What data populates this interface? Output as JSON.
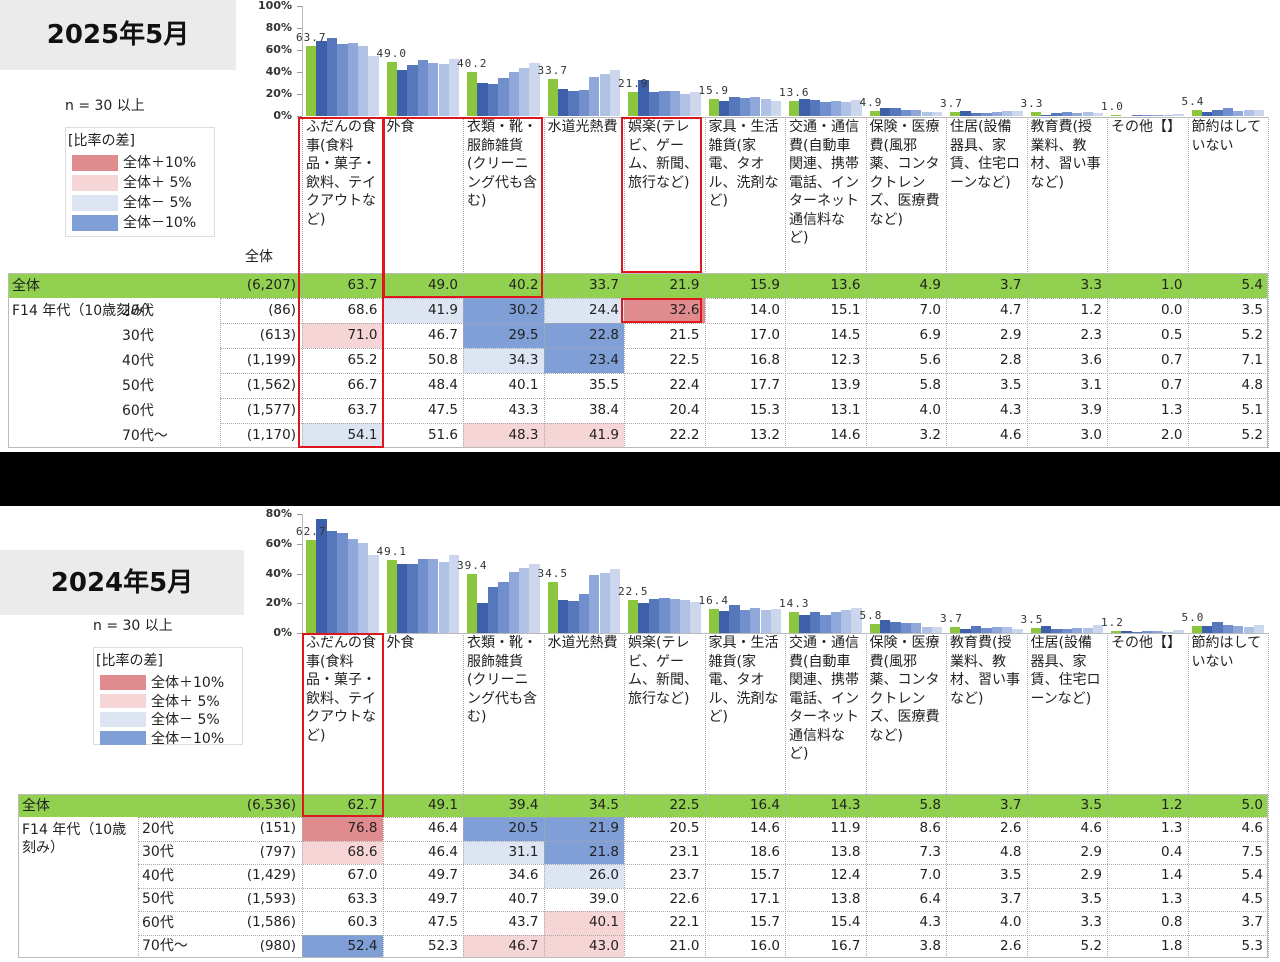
{
  "chart_data": [
    {
      "type": "bar",
      "title": "2025年5月",
      "note": "n = 30 以上",
      "legend_title": "[比率の差]",
      "legend": [
        {
          "label": "全体＋10%",
          "color": "#e08b8e",
          "threshold": 10
        },
        {
          "label": "全体＋ 5%",
          "color": "#f6d5d7",
          "threshold": 5
        },
        {
          "label": "全体－ 5%",
          "color": "#dde5f3",
          "threshold": -5
        },
        {
          "label": "全体－10%",
          "color": "#7f9fd6",
          "threshold": -10
        }
      ],
      "n_header": "全体",
      "group_label": "F14 年代（10歳刻み）",
      "categories": [
        "ふだんの食事(食料品・菓子・飲料、テイクアウトなど)",
        "外食",
        "衣類・靴・服飾雑貨(クリーニング代も含む)",
        "水道光熱費",
        "娯楽(テレビ、ゲーム、新聞、旅行など)",
        "家具・生活雑貨(家電、タオル、洗剤など)",
        "交通・通信費(自動車関連、携帯電話、インターネット通信料など)",
        "保険・医療費(風邪薬、コンタクトレンズ、医療費など)",
        "住居(設備器具、家賃、住宅ローンなど)",
        "教育費(授業料、教材、習い事など)",
        "その他【】",
        "節約はしていない"
      ],
      "series": [
        {
          "name": "全体",
          "n": "(6,207)",
          "color": "#8cc63e",
          "values": [
            63.7,
            49.0,
            40.2,
            33.7,
            21.9,
            15.9,
            13.6,
            4.9,
            3.7,
            3.3,
            1.0,
            5.4
          ],
          "value_labels": [
            "63.7",
            "49.0",
            "40.2",
            "33.7",
            "21.9",
            "15.9",
            "13.6",
            "4.9",
            "3.7",
            "3.3",
            "1.0",
            "5.4"
          ]
        },
        {
          "name": "20代",
          "n": "(86)",
          "color": "#3e5fa9",
          "values": [
            68.6,
            41.9,
            30.2,
            24.4,
            32.6,
            14.0,
            15.1,
            7.0,
            4.7,
            1.2,
            0.0,
            3.5
          ],
          "value_labels": [
            "68.6",
            "41.9",
            "30.2",
            "24.4",
            "32.6",
            "14.0",
            "15.1",
            "7.0",
            "4.7",
            "1.2",
            "0.0",
            "3.5"
          ]
        },
        {
          "name": "30代",
          "n": "(613)",
          "color": "#5777bd",
          "values": [
            71.0,
            46.7,
            29.5,
            22.8,
            21.5,
            17.0,
            14.5,
            6.9,
            2.9,
            2.3,
            0.5,
            5.2
          ],
          "value_labels": [
            "71.0",
            "46.7",
            "29.5",
            "22.8",
            "21.5",
            "17.0",
            "14.5",
            "6.9",
            "2.9",
            "2.3",
            "0.5",
            "5.2"
          ]
        },
        {
          "name": "40代",
          "n": "(1,199)",
          "color": "#708fcc",
          "values": [
            65.2,
            50.8,
            34.3,
            23.4,
            22.5,
            16.8,
            12.3,
            5.6,
            2.8,
            3.6,
            0.7,
            7.1
          ],
          "value_labels": [
            "65.2",
            "50.8",
            "34.3",
            "23.4",
            "22.5",
            "16.8",
            "12.3",
            "5.6",
            "2.8",
            "3.6",
            "0.7",
            "7.1"
          ]
        },
        {
          "name": "50代",
          "n": "(1,562)",
          "color": "#8fa8d9",
          "values": [
            66.7,
            48.4,
            40.1,
            35.5,
            22.4,
            17.7,
            13.9,
            5.8,
            3.5,
            3.1,
            0.7,
            4.8
          ],
          "value_labels": [
            "66.7",
            "48.4",
            "40.1",
            "35.5",
            "22.4",
            "17.7",
            "13.9",
            "5.8",
            "3.5",
            "3.1",
            "0.7",
            "4.8"
          ]
        },
        {
          "name": "60代",
          "n": "(1,577)",
          "color": "#afc1e4",
          "values": [
            63.7,
            47.5,
            43.3,
            38.4,
            20.4,
            15.3,
            13.1,
            4.0,
            4.3,
            3.9,
            1.3,
            5.1
          ],
          "value_labels": [
            "63.7",
            "47.5",
            "43.3",
            "38.4",
            "20.4",
            "15.3",
            "13.1",
            "4.0",
            "4.3",
            "3.9",
            "1.3",
            "5.1"
          ]
        },
        {
          "name": "70代～",
          "n": "(1,170)",
          "color": "#ccd7ee",
          "values": [
            54.1,
            51.6,
            48.3,
            41.9,
            22.2,
            13.2,
            14.6,
            3.2,
            4.6,
            3.0,
            2.0,
            5.2
          ],
          "value_labels": [
            "54.1",
            "51.6",
            "48.3",
            "41.9",
            "22.2",
            "13.2",
            "14.6",
            "3.2",
            "4.6",
            "3.0",
            "2.0",
            "5.2"
          ]
        }
      ],
      "ylim": [
        0,
        100
      ],
      "yticks": [
        {
          "value": 0,
          "label": "0%"
        },
        {
          "value": 20,
          "label": "20%"
        },
        {
          "value": 40,
          "label": "40%"
        },
        {
          "value": 60,
          "label": "60%"
        },
        {
          "value": 80,
          "label": "80%"
        },
        {
          "value": 100,
          "label": "100%"
        }
      ]
    },
    {
      "type": "bar",
      "title": "2024年5月",
      "note": "n = 30 以上",
      "legend_title": "[比率の差]",
      "legend": [
        {
          "label": "全体＋10%",
          "color": "#e08b8e",
          "threshold": 10
        },
        {
          "label": "全体＋ 5%",
          "color": "#f6d5d7",
          "threshold": 5
        },
        {
          "label": "全体－ 5%",
          "color": "#dde5f3",
          "threshold": -5
        },
        {
          "label": "全体－10%",
          "color": "#7f9fd6",
          "threshold": -10
        }
      ],
      "group_label": "F14 年代（10歳刻み）",
      "categories": [
        "ふだんの食事(食料品・菓子・飲料、テイクアウトなど)",
        "外食",
        "衣類・靴・服飾雑貨(クリーニング代も含む)",
        "水道光熱費",
        "娯楽(テレビ、ゲーム、新聞、旅行など)",
        "家具・生活雑貨(家電、タオル、洗剤など)",
        "交通・通信費(自動車関連、携帯電話、インターネット通信料など)",
        "保険・医療費(風邪薬、コンタクトレンズ、医療費など)",
        "教育費(授業料、教材、習い事など)",
        "住居(設備器具、家賃、住宅ローンなど)",
        "その他【】",
        "節約はしていない"
      ],
      "series": [
        {
          "name": "全体",
          "n": "(6,536)",
          "color": "#8cc63e",
          "values": [
            62.7,
            49.1,
            39.4,
            34.5,
            22.5,
            16.4,
            14.3,
            5.8,
            3.7,
            3.5,
            1.2,
            5.0
          ],
          "value_labels": [
            "62.7",
            "49.1",
            "39.4",
            "34.5",
            "22.5",
            "16.4",
            "14.3",
            "5.8",
            "3.7",
            "3.5",
            "1.2",
            "5.0"
          ]
        },
        {
          "name": "20代",
          "n": "(151)",
          "color": "#3e5fa9",
          "values": [
            76.8,
            46.4,
            20.5,
            21.9,
            20.5,
            14.6,
            11.9,
            8.6,
            2.6,
            4.6,
            1.3,
            4.6
          ],
          "value_labels": [
            "76.8",
            "46.4",
            "20.5",
            "21.9",
            "20.5",
            "14.6",
            "11.9",
            "8.6",
            "2.6",
            "4.6",
            "1.3",
            "4.6"
          ]
        },
        {
          "name": "30代",
          "n": "(797)",
          "color": "#5777bd",
          "values": [
            68.6,
            46.4,
            31.1,
            21.8,
            23.1,
            18.6,
            13.8,
            7.3,
            4.8,
            2.9,
            0.4,
            7.5
          ],
          "value_labels": [
            "68.6",
            "46.4",
            "31.1",
            "21.8",
            "23.1",
            "18.6",
            "13.8",
            "7.3",
            "4.8",
            "2.9",
            "0.4",
            "7.5"
          ]
        },
        {
          "name": "40代",
          "n": "(1,429)",
          "color": "#708fcc",
          "values": [
            67.0,
            49.7,
            34.6,
            26.0,
            23.7,
            15.7,
            12.4,
            7.0,
            3.5,
            2.9,
            1.4,
            5.4
          ],
          "value_labels": [
            "67.0",
            "49.7",
            "34.6",
            "26.0",
            "23.7",
            "15.7",
            "12.4",
            "7.0",
            "3.5",
            "2.9",
            "1.4",
            "5.4"
          ]
        },
        {
          "name": "50代",
          "n": "(1,593)",
          "color": "#8fa8d9",
          "values": [
            63.3,
            49.7,
            40.7,
            39.0,
            22.6,
            17.1,
            13.8,
            6.4,
            3.7,
            3.5,
            1.3,
            4.5
          ],
          "value_labels": [
            "63.3",
            "49.7",
            "40.7",
            "39.0",
            "22.6",
            "17.1",
            "13.8",
            "6.4",
            "3.7",
            "3.5",
            "1.3",
            "4.5"
          ]
        },
        {
          "name": "60代",
          "n": "(1,586)",
          "color": "#afc1e4",
          "values": [
            60.3,
            47.5,
            43.7,
            40.1,
            22.1,
            15.7,
            15.4,
            4.3,
            4.0,
            3.3,
            0.8,
            3.7
          ],
          "value_labels": [
            "60.3",
            "47.5",
            "43.7",
            "40.1",
            "22.1",
            "15.7",
            "15.4",
            "4.3",
            "4.0",
            "3.3",
            "0.8",
            "3.7"
          ]
        },
        {
          "name": "70代～",
          "n": "(980)",
          "color": "#ccd7ee",
          "values": [
            52.4,
            52.3,
            46.7,
            43.0,
            21.0,
            16.0,
            16.7,
            3.8,
            2.6,
            5.2,
            1.8,
            5.3
          ],
          "value_labels": [
            "52.4",
            "52.3",
            "46.7",
            "43.0",
            "21.0",
            "16.0",
            "16.7",
            "3.8",
            "2.6",
            "5.2",
            "1.8",
            "5.3"
          ]
        }
      ],
      "ylim": [
        0,
        80
      ],
      "yticks": [
        {
          "value": 0,
          "label": "0%"
        },
        {
          "value": 20,
          "label": "20%"
        },
        {
          "value": 40,
          "label": "40%"
        },
        {
          "value": 60,
          "label": "60%"
        },
        {
          "value": 80,
          "label": "80%"
        }
      ]
    }
  ]
}
